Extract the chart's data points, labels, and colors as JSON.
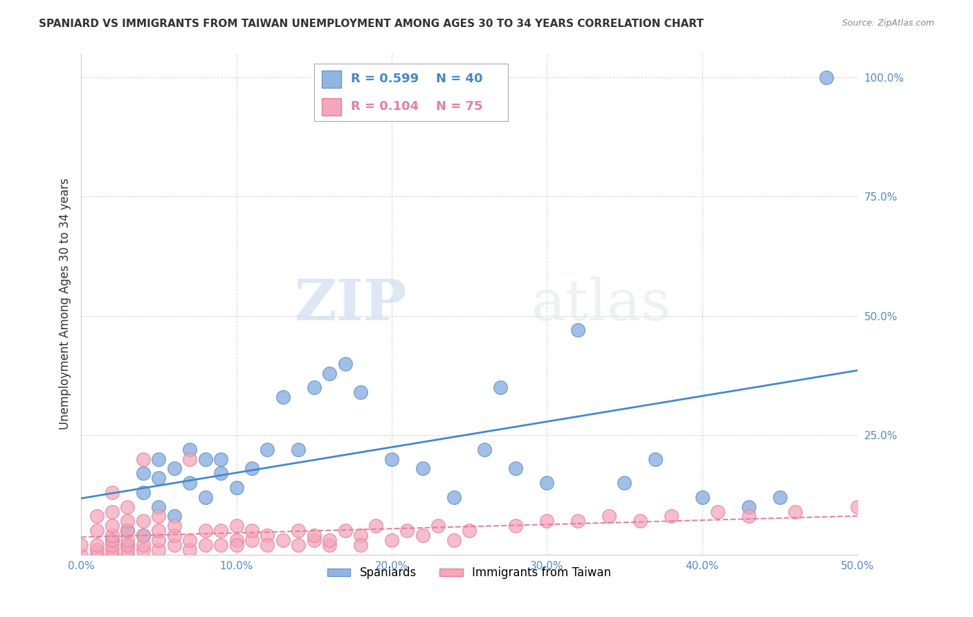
{
  "title": "SPANIARD VS IMMIGRANTS FROM TAIWAN UNEMPLOYMENT AMONG AGES 30 TO 34 YEARS CORRELATION CHART",
  "source": "Source: ZipAtlas.com",
  "ylabel": "Unemployment Among Ages 30 to 34 years",
  "xlim": [
    0.0,
    0.5
  ],
  "ylim": [
    0.0,
    1.05
  ],
  "x_ticks": [
    0.0,
    0.1,
    0.2,
    0.3,
    0.4,
    0.5
  ],
  "x_tick_labels": [
    "0.0%",
    "10.0%",
    "20.0%",
    "30.0%",
    "40.0%",
    "50.0%"
  ],
  "y_ticks": [
    0.0,
    0.25,
    0.5,
    0.75,
    1.0
  ],
  "y_tick_labels": [
    "",
    "25.0%",
    "50.0%",
    "75.0%",
    "100.0%"
  ],
  "spaniards_color": "#92b4e3",
  "taiwan_color": "#f4a7b9",
  "spaniards_edge": "#6699cc",
  "taiwan_edge": "#e87da0",
  "trendline_spaniards": "#4488cc",
  "trendline_taiwan": "#e87da0",
  "legend_R_spaniards": "R = 0.599",
  "legend_N_spaniards": "N = 40",
  "legend_R_taiwan": "R = 0.104",
  "legend_N_taiwan": "N = 75",
  "watermark_zip": "ZIP",
  "watermark_atlas": "atlas",
  "spaniards_x": [
    0.02,
    0.03,
    0.03,
    0.04,
    0.04,
    0.04,
    0.05,
    0.05,
    0.05,
    0.06,
    0.06,
    0.07,
    0.07,
    0.08,
    0.08,
    0.09,
    0.09,
    0.1,
    0.11,
    0.12,
    0.13,
    0.14,
    0.15,
    0.16,
    0.17,
    0.18,
    0.2,
    0.22,
    0.24,
    0.26,
    0.27,
    0.28,
    0.3,
    0.32,
    0.35,
    0.37,
    0.4,
    0.43,
    0.45,
    0.48
  ],
  "spaniards_y": [
    0.03,
    0.05,
    0.02,
    0.04,
    0.13,
    0.17,
    0.1,
    0.16,
    0.2,
    0.08,
    0.18,
    0.15,
    0.22,
    0.12,
    0.2,
    0.17,
    0.2,
    0.14,
    0.18,
    0.22,
    0.33,
    0.22,
    0.35,
    0.38,
    0.4,
    0.34,
    0.2,
    0.18,
    0.12,
    0.22,
    0.35,
    0.18,
    0.15,
    0.47,
    0.15,
    0.2,
    0.12,
    0.1,
    0.12,
    1.0
  ],
  "taiwan_x": [
    0.0,
    0.0,
    0.01,
    0.01,
    0.01,
    0.01,
    0.01,
    0.02,
    0.02,
    0.02,
    0.02,
    0.02,
    0.02,
    0.02,
    0.02,
    0.03,
    0.03,
    0.03,
    0.03,
    0.03,
    0.03,
    0.03,
    0.04,
    0.04,
    0.04,
    0.04,
    0.04,
    0.05,
    0.05,
    0.05,
    0.05,
    0.06,
    0.06,
    0.06,
    0.07,
    0.07,
    0.07,
    0.08,
    0.08,
    0.09,
    0.09,
    0.1,
    0.1,
    0.1,
    0.11,
    0.11,
    0.12,
    0.12,
    0.13,
    0.14,
    0.14,
    0.15,
    0.15,
    0.16,
    0.16,
    0.17,
    0.18,
    0.18,
    0.19,
    0.2,
    0.21,
    0.22,
    0.23,
    0.24,
    0.25,
    0.28,
    0.3,
    0.32,
    0.34,
    0.36,
    0.38,
    0.41,
    0.43,
    0.46,
    0.5
  ],
  "taiwan_y": [
    0.0,
    0.02,
    0.0,
    0.01,
    0.02,
    0.05,
    0.08,
    0.0,
    0.01,
    0.02,
    0.03,
    0.04,
    0.06,
    0.09,
    0.13,
    0.0,
    0.01,
    0.02,
    0.03,
    0.05,
    0.07,
    0.1,
    0.01,
    0.02,
    0.04,
    0.07,
    0.2,
    0.01,
    0.03,
    0.05,
    0.08,
    0.02,
    0.04,
    0.06,
    0.01,
    0.03,
    0.2,
    0.02,
    0.05,
    0.02,
    0.05,
    0.03,
    0.06,
    0.02,
    0.03,
    0.05,
    0.04,
    0.02,
    0.03,
    0.05,
    0.02,
    0.03,
    0.04,
    0.02,
    0.03,
    0.05,
    0.04,
    0.02,
    0.06,
    0.03,
    0.05,
    0.04,
    0.06,
    0.03,
    0.05,
    0.06,
    0.07,
    0.07,
    0.08,
    0.07,
    0.08,
    0.09,
    0.08,
    0.09,
    0.1
  ]
}
